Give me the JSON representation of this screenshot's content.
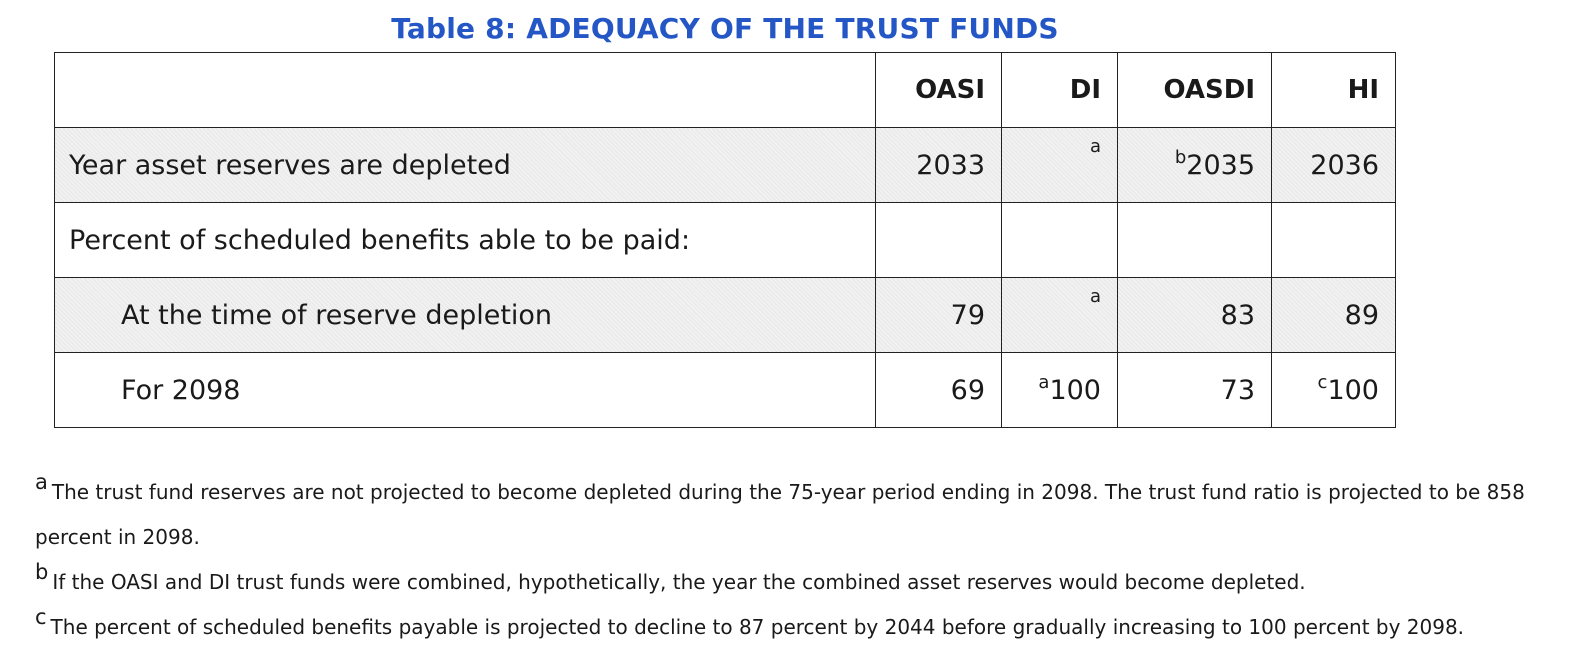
{
  "title": "Table 8: ADEQUACY OF THE TRUST FUNDS",
  "table": {
    "headers": [
      "",
      "OASI",
      "DI",
      "OASDI",
      "HI"
    ],
    "rows": [
      {
        "label": "Year asset reserves are depleted",
        "oasi": "2033",
        "di_sup": "a",
        "di": "",
        "oasdi_sup": "b",
        "oasdi": "2035",
        "hi_sup": "",
        "hi": "2036"
      },
      {
        "label": "Percent of scheduled benefits able to be paid:",
        "oasi": "",
        "di": "",
        "oasdi": "",
        "hi": ""
      },
      {
        "label": "At the time of reserve depletion",
        "oasi": "79",
        "di_sup": "a",
        "di": "",
        "oasdi": "83",
        "hi": "89"
      },
      {
        "label": "For 2098",
        "oasi": "69",
        "di_sup": "a",
        "di": "100",
        "oasdi": "73",
        "hi_sup": "c",
        "hi": "100"
      }
    ]
  },
  "footnotes": [
    {
      "mark": "a",
      "text": "The trust fund reserves are not projected to become depleted during the 75-year period ending in 2098. The trust fund ratio is projected to be 858 percent in 2098."
    },
    {
      "mark": "b",
      "text": "If the OASI and DI trust funds were combined, hypothetically, the year the combined asset reserves would become depleted."
    },
    {
      "mark": "c",
      "text": "The percent of scheduled benefits payable is projected to decline to 87 percent by 2044 before gradually increasing to 100 percent by 2098."
    }
  ]
}
